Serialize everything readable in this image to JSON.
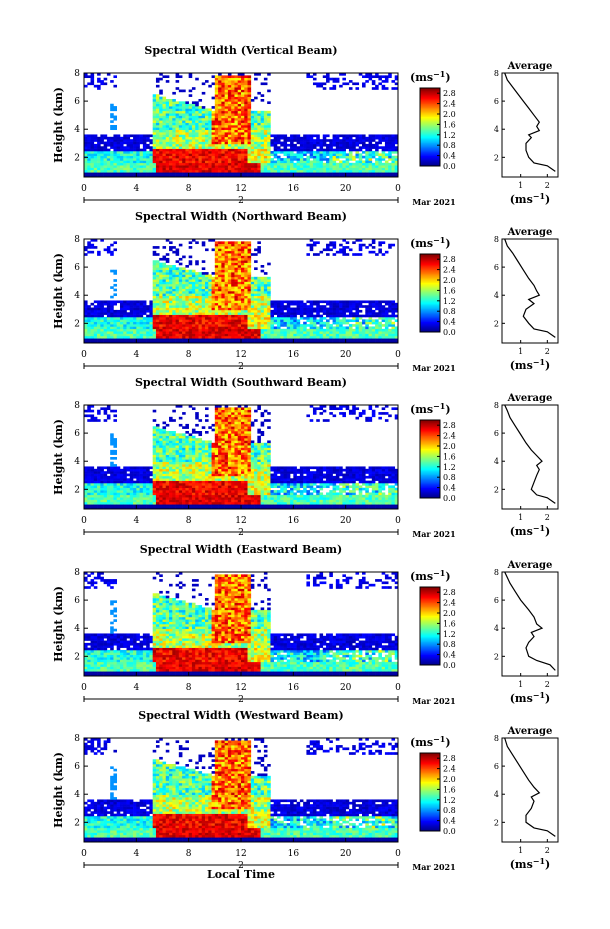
{
  "figure": {
    "xlabel_bottom": "Local Time",
    "date_label": "Mar 2021",
    "day_label": "2",
    "ylabel": "Height (km)",
    "cbar_unit_prefix": "(ms",
    "cbar_unit_sup": "−1",
    "cbar_unit_suffix": ")",
    "avg_title": "Average",
    "avg_xunit_prefix": "(ms",
    "avg_xunit_sup": "−1",
    "avg_xunit_suffix": ")"
  },
  "chart_data": [
    {
      "type": "heatmap",
      "title": "Spectral Width (Vertical Beam)",
      "x_ticks": [
        "0",
        "4",
        "8",
        "12",
        "16",
        "20",
        "0"
      ],
      "y_ticks": [
        "2",
        "4",
        "6",
        "8"
      ],
      "xlim": [
        0,
        24
      ],
      "ylim": [
        0.6,
        8
      ],
      "colorbar": {
        "ticks": [
          "0.0",
          "0.4",
          "0.8",
          "1.2",
          "1.6",
          "2.0",
          "2.4",
          "2.8"
        ],
        "range": [
          0,
          3.0
        ]
      },
      "average_profile": {
        "x_ticks": [
          "1",
          "2"
        ],
        "xlim": [
          0.3,
          2.4
        ],
        "ylim": [
          0.6,
          8
        ],
        "points": [
          [
            2.3,
            1.0
          ],
          [
            2.0,
            1.4
          ],
          [
            1.5,
            1.6
          ],
          [
            1.3,
            2.0
          ],
          [
            1.2,
            2.5
          ],
          [
            1.2,
            3.0
          ],
          [
            1.4,
            3.4
          ],
          [
            1.3,
            3.6
          ],
          [
            1.7,
            3.9
          ],
          [
            1.6,
            4.2
          ],
          [
            1.7,
            4.5
          ],
          [
            1.5,
            5.0
          ],
          [
            1.3,
            5.5
          ],
          [
            1.1,
            6.0
          ],
          [
            0.9,
            6.5
          ],
          [
            0.7,
            7.0
          ],
          [
            0.5,
            7.5
          ],
          [
            0.4,
            8.0
          ]
        ]
      }
    },
    {
      "type": "heatmap",
      "title": "Spectral Width (Northward Beam)",
      "x_ticks": [
        "0",
        "4",
        "8",
        "12",
        "16",
        "20",
        "0"
      ],
      "y_ticks": [
        "2",
        "4",
        "6",
        "8"
      ],
      "xlim": [
        0,
        24
      ],
      "ylim": [
        0.6,
        8
      ],
      "colorbar": {
        "ticks": [
          "0.0",
          "0.4",
          "0.8",
          "1.2",
          "1.6",
          "2.0",
          "2.4",
          "2.8"
        ],
        "range": [
          0,
          3.0
        ]
      },
      "average_profile": {
        "x_ticks": [
          "1",
          "2"
        ],
        "xlim": [
          0.3,
          2.4
        ],
        "ylim": [
          0.6,
          8
        ],
        "points": [
          [
            2.3,
            1.0
          ],
          [
            2.0,
            1.4
          ],
          [
            1.5,
            1.6
          ],
          [
            1.3,
            2.0
          ],
          [
            1.1,
            2.5
          ],
          [
            1.2,
            3.0
          ],
          [
            1.5,
            3.4
          ],
          [
            1.3,
            3.7
          ],
          [
            1.7,
            4.0
          ],
          [
            1.6,
            4.3
          ],
          [
            1.5,
            4.7
          ],
          [
            1.3,
            5.2
          ],
          [
            1.1,
            5.8
          ],
          [
            0.9,
            6.4
          ],
          [
            0.7,
            7.0
          ],
          [
            0.5,
            7.5
          ],
          [
            0.4,
            8.0
          ]
        ]
      }
    },
    {
      "type": "heatmap",
      "title": "Spectral Width (Southward Beam)",
      "x_ticks": [
        "0",
        "4",
        "8",
        "12",
        "16",
        "20",
        "0"
      ],
      "y_ticks": [
        "2",
        "4",
        "6",
        "8"
      ],
      "xlim": [
        0,
        24
      ],
      "ylim": [
        0.6,
        8
      ],
      "colorbar": {
        "ticks": [
          "0.0",
          "0.4",
          "0.8",
          "1.2",
          "1.6",
          "2.0",
          "2.4",
          "2.8"
        ],
        "range": [
          0,
          3.0
        ]
      },
      "average_profile": {
        "x_ticks": [
          "1",
          "2"
        ],
        "xlim": [
          0.3,
          2.4
        ],
        "ylim": [
          0.6,
          8
        ],
        "points": [
          [
            2.3,
            1.0
          ],
          [
            2.0,
            1.4
          ],
          [
            1.6,
            1.6
          ],
          [
            1.4,
            2.0
          ],
          [
            1.5,
            2.5
          ],
          [
            1.6,
            3.0
          ],
          [
            1.7,
            3.4
          ],
          [
            1.6,
            3.7
          ],
          [
            1.8,
            4.0
          ],
          [
            1.6,
            4.4
          ],
          [
            1.4,
            4.8
          ],
          [
            1.2,
            5.3
          ],
          [
            1.0,
            5.9
          ],
          [
            0.8,
            6.5
          ],
          [
            0.6,
            7.1
          ],
          [
            0.5,
            7.6
          ],
          [
            0.4,
            8.0
          ]
        ]
      }
    },
    {
      "type": "heatmap",
      "title": "Spectral Width (Eastward Beam)",
      "x_ticks": [
        "0",
        "4",
        "8",
        "12",
        "16",
        "20",
        "0"
      ],
      "y_ticks": [
        "2",
        "4",
        "6",
        "8"
      ],
      "xlim": [
        0,
        24
      ],
      "ylim": [
        0.6,
        8
      ],
      "colorbar": {
        "ticks": [
          "0.0",
          "0.4",
          "0.8",
          "1.2",
          "1.6",
          "2.0",
          "2.4",
          "2.8"
        ],
        "range": [
          0,
          3.0
        ]
      },
      "average_profile": {
        "x_ticks": [
          "1",
          "2"
        ],
        "xlim": [
          0.3,
          2.4
        ],
        "ylim": [
          0.6,
          8
        ],
        "points": [
          [
            2.3,
            1.0
          ],
          [
            2.1,
            1.4
          ],
          [
            1.6,
            1.7
          ],
          [
            1.3,
            2.0
          ],
          [
            1.2,
            2.6
          ],
          [
            1.3,
            3.0
          ],
          [
            1.5,
            3.4
          ],
          [
            1.4,
            3.7
          ],
          [
            1.8,
            4.0
          ],
          [
            1.6,
            4.3
          ],
          [
            1.5,
            4.8
          ],
          [
            1.3,
            5.3
          ],
          [
            1.0,
            6.0
          ],
          [
            0.8,
            6.6
          ],
          [
            0.6,
            7.2
          ],
          [
            0.4,
            8.0
          ]
        ]
      }
    },
    {
      "type": "heatmap",
      "title": "Spectral Width (Westward Beam)",
      "x_ticks": [
        "0",
        "4",
        "8",
        "12",
        "16",
        "20",
        "0"
      ],
      "y_ticks": [
        "2",
        "4",
        "6",
        "8"
      ],
      "xlim": [
        0,
        24
      ],
      "ylim": [
        0.6,
        8
      ],
      "colorbar": {
        "ticks": [
          "0.0",
          "0.4",
          "0.8",
          "1.2",
          "1.6",
          "2.0",
          "2.4",
          "2.8"
        ],
        "range": [
          0,
          3.0
        ]
      },
      "average_profile": {
        "x_ticks": [
          "1",
          "2"
        ],
        "xlim": [
          0.3,
          2.4
        ],
        "ylim": [
          0.6,
          8
        ],
        "points": [
          [
            2.3,
            1.0
          ],
          [
            2.0,
            1.4
          ],
          [
            1.5,
            1.6
          ],
          [
            1.2,
            2.0
          ],
          [
            1.2,
            2.5
          ],
          [
            1.4,
            3.0
          ],
          [
            1.5,
            3.5
          ],
          [
            1.4,
            3.8
          ],
          [
            1.7,
            4.1
          ],
          [
            1.5,
            4.5
          ],
          [
            1.3,
            5.0
          ],
          [
            1.1,
            5.6
          ],
          [
            0.9,
            6.2
          ],
          [
            0.7,
            6.8
          ],
          [
            0.5,
            7.4
          ],
          [
            0.4,
            8.0
          ]
        ]
      }
    }
  ]
}
